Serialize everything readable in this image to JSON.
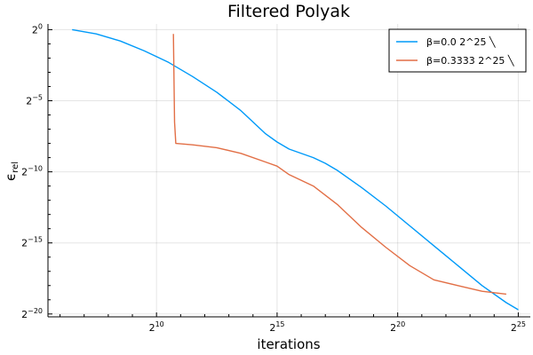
{
  "chart_data": {
    "type": "line",
    "title": "Filtered Polyak",
    "xlabel": "iterations",
    "ylabel": "ϵ",
    "ylabel_sub": "rel",
    "xscale": "log2",
    "yscale": "log2",
    "xlim": [
      5.5,
      25.5
    ],
    "ylim": [
      -20.2,
      0.4
    ],
    "grid": true,
    "legend_position": "top-right",
    "x_ticks": [
      {
        "value": 10,
        "base": "2",
        "exp": "10"
      },
      {
        "value": 15,
        "base": "2",
        "exp": "15"
      },
      {
        "value": 20,
        "base": "2",
        "exp": "20"
      },
      {
        "value": 25,
        "base": "2",
        "exp": "25"
      }
    ],
    "y_ticks": [
      {
        "value": 0,
        "base": "2",
        "exp": "0"
      },
      {
        "value": -5,
        "base": "2",
        "exp": "−5"
      },
      {
        "value": -10,
        "base": "2",
        "exp": "−10"
      },
      {
        "value": -15,
        "base": "2",
        "exp": "−15"
      },
      {
        "value": -20,
        "base": "2",
        "exp": "−20"
      }
    ],
    "series": [
      {
        "name": "β=0.0 2^25 ╲",
        "color": "#009af9",
        "x": [
          6.5,
          7.5,
          8.5,
          9.5,
          10.5,
          11.5,
          12.5,
          13.5,
          14.5,
          15.0,
          15.5,
          16.5,
          17.0,
          17.5,
          18.5,
          19.5,
          20.5,
          21.5,
          22.5,
          23.5,
          24.5,
          25.0
        ],
        "y": [
          0.0,
          -0.3,
          -0.8,
          -1.5,
          -2.3,
          -3.3,
          -4.4,
          -5.7,
          -7.3,
          -7.9,
          -8.4,
          -9.0,
          -9.4,
          -9.9,
          -11.1,
          -12.4,
          -13.8,
          -15.2,
          -16.6,
          -18.0,
          -19.2,
          -19.7
        ]
      },
      {
        "name": "β=0.3333 2^25 ╲",
        "color": "#e26f46",
        "x": [
          10.7,
          10.75,
          10.8,
          11.5,
          12.5,
          13.5,
          14.5,
          15.0,
          15.5,
          16.5,
          17.5,
          18.5,
          19.5,
          20.5,
          21.5,
          22.5,
          23.5,
          24.5
        ],
        "y": [
          -0.3,
          -6.5,
          -8.0,
          -8.1,
          -8.3,
          -8.7,
          -9.3,
          -9.6,
          -10.2,
          -11.0,
          -12.3,
          -13.9,
          -15.3,
          -16.6,
          -17.6,
          -18.0,
          -18.4,
          -18.6
        ]
      }
    ]
  }
}
